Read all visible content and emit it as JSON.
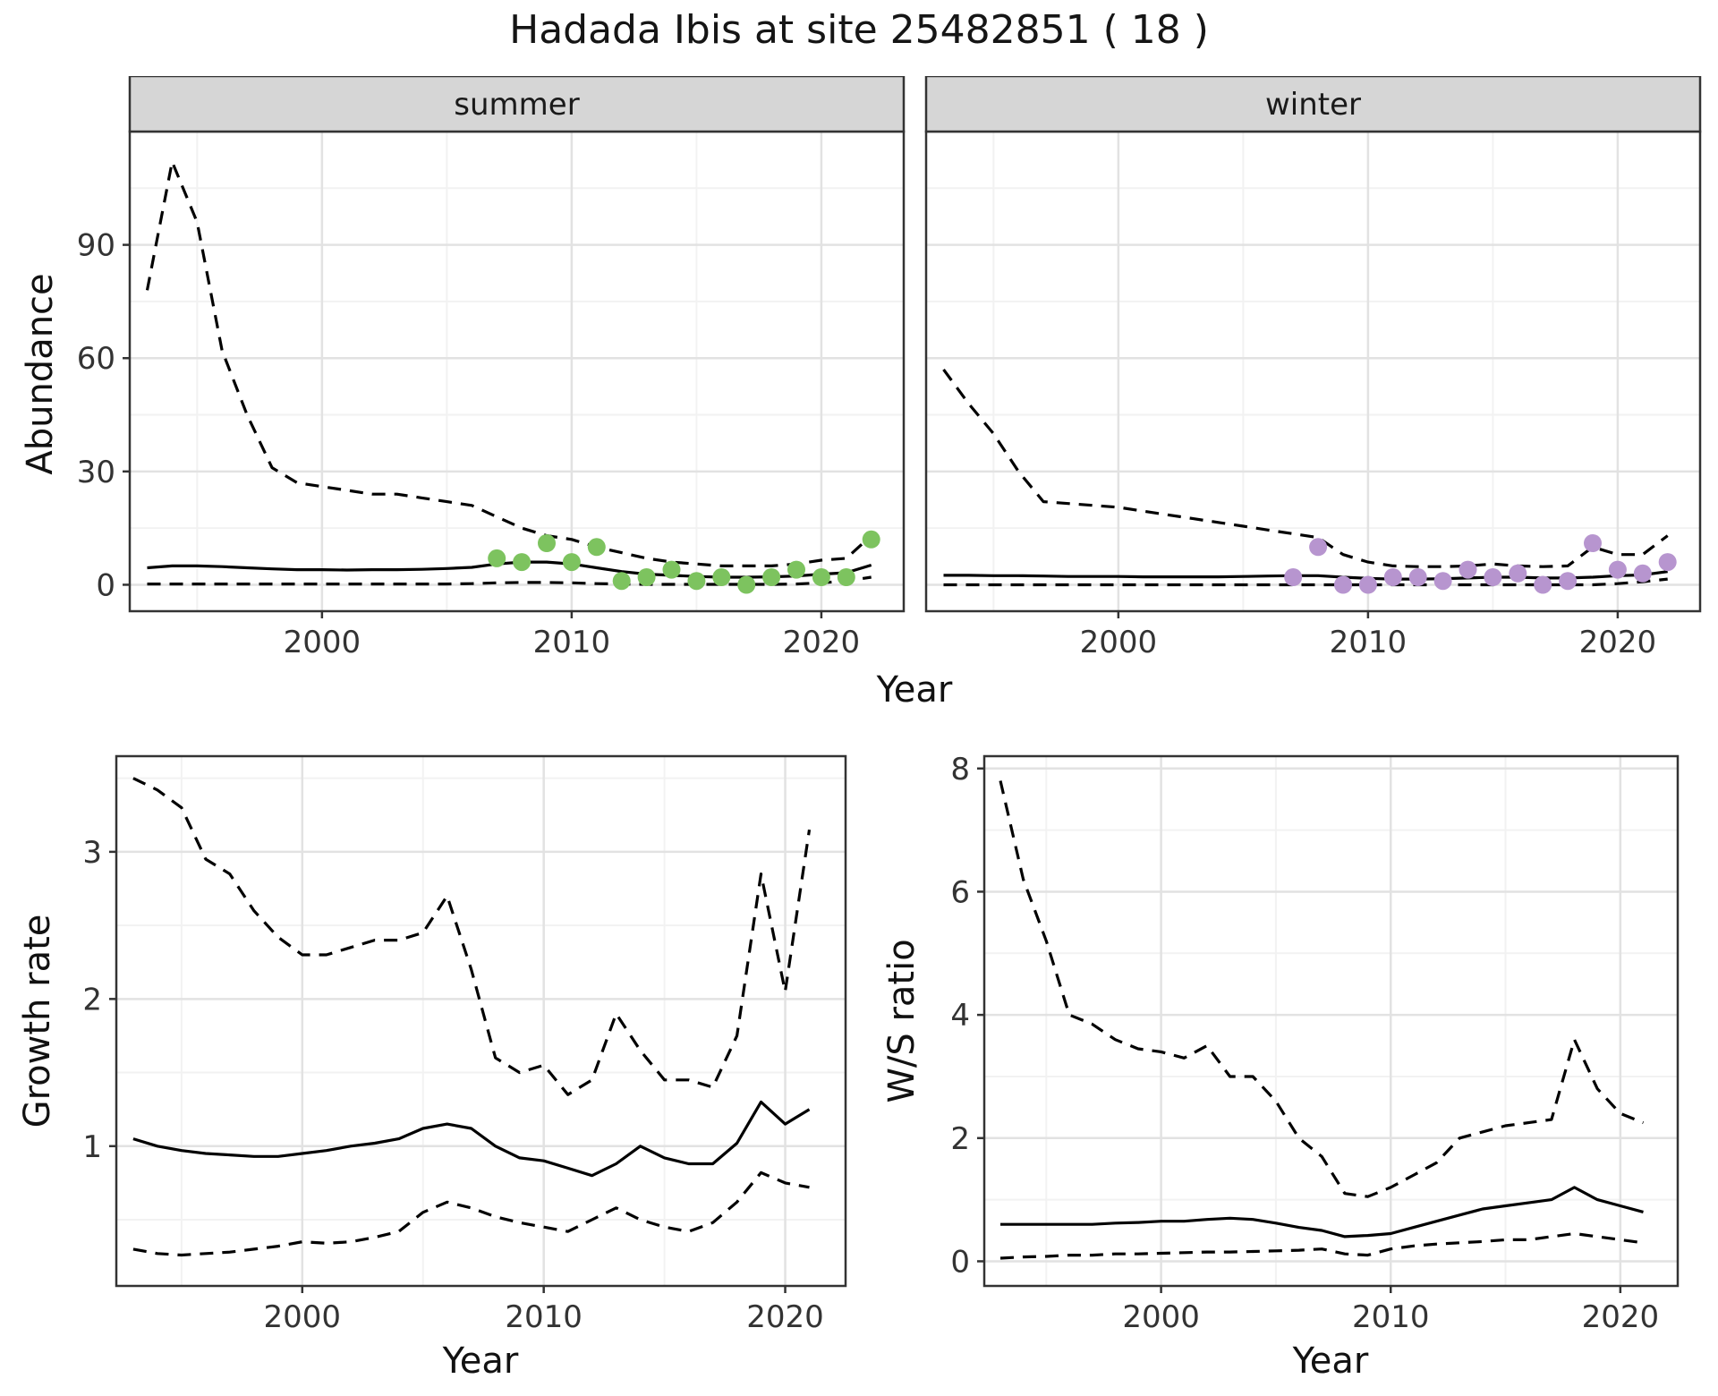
{
  "title": "Hadada Ibis at site 25482851 ( 18 )",
  "colors": {
    "summer_points": "#7dc35f",
    "winter_points": "#b795cf",
    "line": "#000000",
    "strip_bg": "#d6d6d6",
    "grid_major": "#e2e2e2",
    "grid_minor": "#f2f2f2",
    "panel_border": "#333333",
    "tick_text": "#333333"
  },
  "chart_data": [
    {
      "id": "summer",
      "type": "line",
      "facet_label": "summer",
      "xlabel": "Year",
      "ylabel": "Abundance",
      "xlim": [
        1992.3,
        2023.3
      ],
      "ylim": [
        -7,
        120
      ],
      "xticks": [
        2000,
        2010,
        2020
      ],
      "yticks": [
        0,
        30,
        60,
        90
      ],
      "x": [
        1993,
        1994,
        1995,
        1996,
        1997,
        1998,
        1999,
        2000,
        2001,
        2002,
        2003,
        2004,
        2005,
        2006,
        2007,
        2008,
        2009,
        2010,
        2011,
        2012,
        2013,
        2014,
        2015,
        2016,
        2017,
        2018,
        2019,
        2020,
        2021,
        2022
      ],
      "series": [
        {
          "name": "upper-ci",
          "style": "dashed",
          "values": [
            78,
            112,
            96,
            62,
            45,
            31,
            27,
            26,
            25,
            24,
            24,
            23,
            22,
            21,
            18,
            15,
            13,
            12,
            10,
            8.5,
            7,
            6,
            5.5,
            5,
            5,
            5,
            5.5,
            6.5,
            7,
            13
          ]
        },
        {
          "name": "median",
          "style": "solid",
          "values": [
            4.5,
            5,
            5,
            4.8,
            4.5,
            4.2,
            4,
            4,
            3.9,
            4,
            4,
            4.1,
            4.3,
            4.6,
            5.5,
            6,
            6,
            5.5,
            4.5,
            3.5,
            2.8,
            2.5,
            2.2,
            2,
            2,
            2.1,
            2.3,
            2.8,
            3.2,
            5.2
          ]
        },
        {
          "name": "lower-ci",
          "style": "dashed",
          "values": [
            0.2,
            0.2,
            0.2,
            0.2,
            0.2,
            0.2,
            0.2,
            0.2,
            0.2,
            0.2,
            0.2,
            0.2,
            0.2,
            0.3,
            0.5,
            0.6,
            0.6,
            0.5,
            0.3,
            0.2,
            0.1,
            0.1,
            0.1,
            0.1,
            0.1,
            0.1,
            0.2,
            0.5,
            1,
            2
          ]
        }
      ],
      "points": {
        "name": "observed-counts",
        "color_key": "summer_points",
        "x": [
          2007,
          2008,
          2009,
          2010,
          2011,
          2012,
          2013,
          2014,
          2015,
          2016,
          2017,
          2018,
          2019,
          2020,
          2021,
          2022
        ],
        "y": [
          7,
          6,
          11,
          6,
          10,
          1,
          2,
          4,
          1,
          2,
          0,
          2,
          4,
          2,
          2,
          12
        ]
      }
    },
    {
      "id": "winter",
      "type": "line",
      "facet_label": "winter",
      "xlabel": "Year",
      "ylabel": "Abundance",
      "xlim": [
        1992.3,
        2023.3
      ],
      "ylim": [
        -7,
        120
      ],
      "xticks": [
        2000,
        2010,
        2020
      ],
      "yticks": [
        0,
        30,
        60,
        90
      ],
      "x": [
        1993,
        1994,
        1995,
        1996,
        1997,
        1998,
        1999,
        2000,
        2001,
        2002,
        2003,
        2004,
        2005,
        2006,
        2007,
        2008,
        2009,
        2010,
        2011,
        2012,
        2013,
        2014,
        2015,
        2016,
        2017,
        2018,
        2019,
        2020,
        2021,
        2022
      ],
      "series": [
        {
          "name": "upper-ci",
          "style": "dashed",
          "values": [
            57,
            48,
            40,
            30,
            22,
            21.5,
            21,
            20.5,
            19.5,
            18.5,
            17.5,
            16.5,
            15.5,
            14.5,
            13.5,
            12.5,
            8,
            6,
            5,
            4.8,
            4.8,
            5,
            5.5,
            5,
            4.8,
            5,
            10,
            8,
            8,
            13
          ]
        },
        {
          "name": "median",
          "style": "solid",
          "values": [
            2.5,
            2.5,
            2.4,
            2.4,
            2.3,
            2.2,
            2.2,
            2.2,
            2.1,
            2.1,
            2.1,
            2.1,
            2.2,
            2.3,
            2.4,
            2.4,
            2.0,
            1.7,
            1.5,
            1.5,
            1.6,
            1.8,
            2.0,
            2.0,
            1.8,
            1.8,
            2.0,
            2.4,
            2.6,
            3.5
          ]
        },
        {
          "name": "lower-ci",
          "style": "dashed",
          "values": [
            0,
            0,
            0,
            0,
            0,
            0,
            0,
            0,
            0,
            0,
            0,
            0,
            0,
            0,
            0,
            0,
            0,
            0,
            0,
            0,
            0,
            0,
            0,
            0,
            0,
            0,
            0,
            0.3,
            0.8,
            1.5
          ]
        }
      ],
      "points": {
        "name": "observed-counts",
        "color_key": "winter_points",
        "x": [
          2007,
          2008,
          2009,
          2010,
          2011,
          2012,
          2013,
          2014,
          2015,
          2016,
          2017,
          2018,
          2019,
          2020,
          2021,
          2022
        ],
        "y": [
          2,
          10,
          0,
          0,
          2,
          2,
          1,
          4,
          2,
          3,
          0,
          1,
          11,
          4,
          3,
          6
        ]
      }
    },
    {
      "id": "growth_rate",
      "type": "line",
      "facet_label": null,
      "xlabel": "Year",
      "ylabel": "Growth rate",
      "xlim": [
        1992.3,
        2022.5
      ],
      "ylim": [
        0.05,
        3.65
      ],
      "xticks": [
        2000,
        2010,
        2020
      ],
      "yticks": [
        1,
        2,
        3
      ],
      "x": [
        1993,
        1994,
        1995,
        1996,
        1997,
        1998,
        1999,
        2000,
        2001,
        2002,
        2003,
        2004,
        2005,
        2006,
        2007,
        2008,
        2009,
        2010,
        2011,
        2012,
        2013,
        2014,
        2015,
        2016,
        2017,
        2018,
        2019,
        2020,
        2021
      ],
      "series": [
        {
          "name": "upper-ci",
          "style": "dashed",
          "values": [
            3.5,
            3.42,
            3.3,
            2.95,
            2.85,
            2.6,
            2.42,
            2.3,
            2.3,
            2.35,
            2.4,
            2.4,
            2.45,
            2.7,
            2.2,
            1.6,
            1.5,
            1.55,
            1.35,
            1.45,
            1.9,
            1.65,
            1.45,
            1.45,
            1.4,
            1.75,
            2.85,
            2.05,
            3.15
          ]
        },
        {
          "name": "median",
          "style": "solid",
          "values": [
            1.05,
            1.0,
            0.97,
            0.95,
            0.94,
            0.93,
            0.93,
            0.95,
            0.97,
            1.0,
            1.02,
            1.05,
            1.12,
            1.15,
            1.12,
            1.0,
            0.92,
            0.9,
            0.85,
            0.8,
            0.88,
            1.0,
            0.92,
            0.88,
            0.88,
            1.02,
            1.3,
            1.15,
            1.25
          ]
        },
        {
          "name": "lower-ci",
          "style": "dashed",
          "values": [
            0.3,
            0.27,
            0.26,
            0.27,
            0.28,
            0.3,
            0.32,
            0.35,
            0.34,
            0.35,
            0.38,
            0.42,
            0.55,
            0.62,
            0.58,
            0.52,
            0.48,
            0.45,
            0.42,
            0.5,
            0.58,
            0.5,
            0.45,
            0.42,
            0.48,
            0.62,
            0.82,
            0.75,
            0.72
          ]
        }
      ],
      "points": null
    },
    {
      "id": "ws_ratio",
      "type": "line",
      "facet_label": null,
      "xlabel": "Year",
      "ylabel": "W/S ratio",
      "xlim": [
        1992.3,
        2022.5
      ],
      "ylim": [
        -0.4,
        8.2
      ],
      "xticks": [
        2000,
        2010,
        2020
      ],
      "yticks": [
        0,
        2,
        4,
        6,
        8
      ],
      "x": [
        1993,
        1994,
        1995,
        1996,
        1997,
        1998,
        1999,
        2000,
        2001,
        2002,
        2003,
        2004,
        2005,
        2006,
        2007,
        2008,
        2009,
        2010,
        2011,
        2012,
        2013,
        2014,
        2015,
        2016,
        2017,
        2018,
        2019,
        2020,
        2021
      ],
      "series": [
        {
          "name": "upper-ci",
          "style": "dashed",
          "values": [
            7.8,
            6.2,
            5.2,
            4.0,
            3.85,
            3.6,
            3.45,
            3.4,
            3.3,
            3.5,
            3.0,
            3.0,
            2.6,
            2.0,
            1.7,
            1.1,
            1.05,
            1.2,
            1.4,
            1.6,
            2.0,
            2.1,
            2.2,
            2.25,
            2.3,
            3.6,
            2.8,
            2.4,
            2.25
          ]
        },
        {
          "name": "median",
          "style": "solid",
          "values": [
            0.6,
            0.6,
            0.6,
            0.6,
            0.6,
            0.62,
            0.63,
            0.65,
            0.65,
            0.68,
            0.7,
            0.68,
            0.62,
            0.55,
            0.5,
            0.4,
            0.42,
            0.45,
            0.55,
            0.65,
            0.75,
            0.85,
            0.9,
            0.95,
            1.0,
            1.2,
            1.0,
            0.9,
            0.8
          ]
        },
        {
          "name": "lower-ci",
          "style": "dashed",
          "values": [
            0.05,
            0.07,
            0.08,
            0.1,
            0.1,
            0.12,
            0.12,
            0.13,
            0.14,
            0.15,
            0.15,
            0.16,
            0.17,
            0.18,
            0.2,
            0.12,
            0.1,
            0.2,
            0.25,
            0.28,
            0.3,
            0.32,
            0.35,
            0.35,
            0.4,
            0.45,
            0.4,
            0.35,
            0.3
          ]
        }
      ],
      "points": null
    }
  ]
}
